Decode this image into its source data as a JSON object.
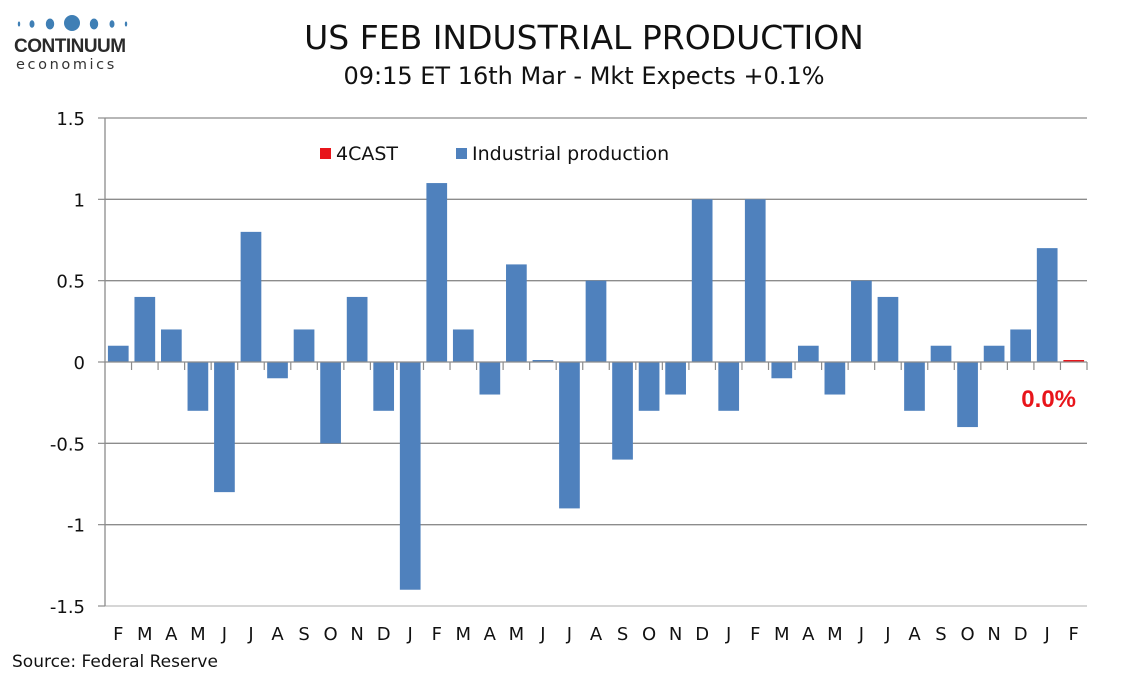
{
  "branding": {
    "logo_word": "CONTINUUM",
    "logo_sub": "economics",
    "logo_color": "#3f7fb5"
  },
  "header": {
    "title": "US FEB INDUSTRIAL PRODUCTION",
    "subtitle": "09:15 ET 16th Mar - Mkt Expects +0.1%"
  },
  "footer": {
    "source": "Source: Federal Reserve"
  },
  "chart_data": {
    "type": "bar",
    "title": "US FEB INDUSTRIAL PRODUCTION",
    "subtitle": "09:15 ET 16th Mar - Mkt Expects +0.1%",
    "xlabel": "",
    "ylabel": "",
    "ylim": [
      -1.5,
      1.5
    ],
    "yticks": [
      1.5,
      1,
      0.5,
      0,
      -0.5,
      -1,
      -1.5
    ],
    "ytick_labels": [
      "1.5",
      "1",
      "0.5",
      "0",
      "-0.5",
      "-1",
      "-1.5"
    ],
    "grid": true,
    "legend_position": "top-left",
    "categories": [
      "F",
      "M",
      "A",
      "M",
      "J",
      "J",
      "A",
      "S",
      "O",
      "N",
      "D",
      "J",
      "F",
      "M",
      "A",
      "M",
      "J",
      "J",
      "A",
      "S",
      "O",
      "N",
      "D",
      "J",
      "F",
      "M",
      "A",
      "M",
      "J",
      "J",
      "A",
      "S",
      "O",
      "N",
      "D",
      "J",
      "F"
    ],
    "series": [
      {
        "name": "4CAST",
        "color": "#e8151b",
        "values": [
          null,
          null,
          null,
          null,
          null,
          null,
          null,
          null,
          null,
          null,
          null,
          null,
          null,
          null,
          null,
          null,
          null,
          null,
          null,
          null,
          null,
          null,
          null,
          null,
          null,
          null,
          null,
          null,
          null,
          null,
          null,
          null,
          null,
          null,
          null,
          null,
          0.0
        ]
      },
      {
        "name": "Industrial production",
        "color": "#4f81bd",
        "values": [
          0.1,
          0.4,
          0.2,
          -0.3,
          -0.8,
          0.8,
          -0.1,
          0.2,
          -0.5,
          0.4,
          -0.3,
          -1.4,
          1.1,
          0.2,
          -0.2,
          0.6,
          0.0,
          -0.9,
          0.5,
          -0.6,
          -0.3,
          -0.2,
          1.0,
          -0.3,
          1.0,
          -0.1,
          0.1,
          -0.2,
          0.5,
          0.4,
          -0.3,
          0.1,
          -0.4,
          0.1,
          0.2,
          0.7,
          null
        ]
      }
    ],
    "legend": [
      "4CAST",
      "Industrial production"
    ],
    "annotations": [
      {
        "text": "0.0%",
        "color": "#e8151b",
        "category_index": 36
      }
    ]
  }
}
